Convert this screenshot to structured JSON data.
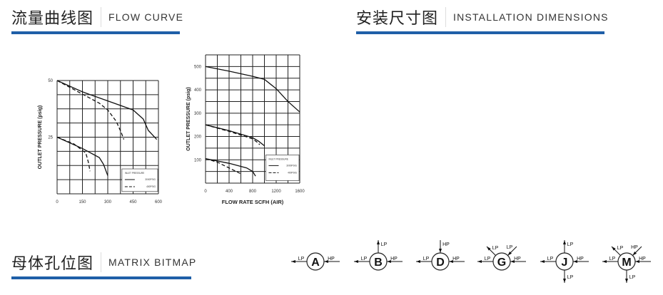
{
  "sections": {
    "flow": {
      "zh": "流量曲线图",
      "en": "FLOW CURVE"
    },
    "install": {
      "zh": "安装尺寸图",
      "en": "INSTALLATION DIMENSIONS"
    },
    "matrix": {
      "zh": "母体孔位图",
      "en": "MATRIX BITMAP"
    }
  },
  "accent": "#1f5fa8",
  "chart_data": [
    {
      "type": "line",
      "xlabel": "FLOW RATE SCFH (AIR)",
      "ylabel": "OUTLET PRESSURE (psig)",
      "xlim": [
        0,
        600
      ],
      "ylim": [
        0,
        50
      ],
      "xticks": [
        "0",
        "150",
        "300",
        "450",
        "600"
      ],
      "yticks": [
        "25",
        "50"
      ],
      "grid": true,
      "legend": {
        "title": "INLET PRESSURE",
        "placement": "bottom-right",
        "entries": [
          "3000PSIG",
          "400PSIG"
        ]
      },
      "series": [
        {
          "style": "solid",
          "points": [
            [
              0,
              50
            ],
            [
              150,
              45
            ],
            [
              300,
              41
            ],
            [
              450,
              37
            ],
            [
              510,
              33
            ],
            [
              540,
              28
            ],
            [
              590,
              24
            ]
          ]
        },
        {
          "style": "dashed",
          "points": [
            [
              0,
              50
            ],
            [
              150,
              44
            ],
            [
              250,
              40
            ],
            [
              300,
              37
            ],
            [
              350,
              32
            ],
            [
              380,
              27
            ],
            [
              395,
              24
            ]
          ]
        },
        {
          "style": "solid",
          "points": [
            [
              0,
              25
            ],
            [
              150,
              20
            ],
            [
              250,
              16
            ],
            [
              275,
              13
            ],
            [
              300,
              8
            ]
          ]
        },
        {
          "style": "dashed",
          "points": [
            [
              0,
              25
            ],
            [
              100,
              22
            ],
            [
              170,
              18
            ],
            [
              185,
              14
            ],
            [
              195,
              10
            ]
          ]
        }
      ]
    },
    {
      "type": "line",
      "xlabel": "FLOW RATE SCFH (AIR)",
      "ylabel": "OUTLET PRESSURE (psig)",
      "xlim": [
        0,
        1600
      ],
      "ylim": [
        0,
        550
      ],
      "xticks": [
        "0",
        "400",
        "800",
        "1200",
        "1600"
      ],
      "yticks": [
        "100",
        "200",
        "300",
        "400",
        "500"
      ],
      "grid": true,
      "legend": {
        "title": "INLET PRESSURE",
        "placement": "bottom-right",
        "entries": [
          "3000PSIG",
          "400PSIG"
        ]
      },
      "series": [
        {
          "style": "solid",
          "points": [
            [
              0,
              500
            ],
            [
              400,
              480
            ],
            [
              800,
              458
            ],
            [
              1000,
              445
            ],
            [
              1200,
              405
            ],
            [
              1400,
              350
            ],
            [
              1600,
              305
            ]
          ]
        },
        {
          "style": "solid",
          "points": [
            [
              0,
              250
            ],
            [
              400,
              225
            ],
            [
              800,
              195
            ],
            [
              900,
              180
            ],
            [
              1000,
              160
            ]
          ]
        },
        {
          "style": "dashed",
          "points": [
            [
              0,
              250
            ],
            [
              400,
              222
            ],
            [
              800,
              190
            ],
            [
              880,
              175
            ],
            [
              920,
              165
            ]
          ]
        },
        {
          "style": "solid",
          "points": [
            [
              0,
              105
            ],
            [
              400,
              85
            ],
            [
              700,
              65
            ],
            [
              800,
              50
            ],
            [
              850,
              30
            ]
          ]
        },
        {
          "style": "dashed",
          "points": [
            [
              0,
              105
            ],
            [
              200,
              90
            ],
            [
              400,
              65
            ],
            [
              600,
              40
            ]
          ]
        }
      ]
    }
  ],
  "matrix": [
    {
      "letter": "A",
      "ports": [
        {
          "label": "LP",
          "dir": "left",
          "flow": "out"
        },
        {
          "label": "HP",
          "dir": "right",
          "flow": "in"
        }
      ]
    },
    {
      "letter": "B",
      "ports": [
        {
          "label": "LP",
          "dir": "left",
          "flow": "out"
        },
        {
          "label": "LP",
          "dir": "up",
          "flow": "out"
        },
        {
          "label": "HP",
          "dir": "right",
          "flow": "in"
        }
      ]
    },
    {
      "letter": "D",
      "ports": [
        {
          "label": "LP",
          "dir": "left",
          "flow": "out"
        },
        {
          "label": "HP",
          "dir": "up",
          "flow": "in"
        },
        {
          "label": "HP",
          "dir": "right",
          "flow": "in"
        }
      ]
    },
    {
      "letter": "G",
      "ports": [
        {
          "label": "LP",
          "dir": "left",
          "flow": "out"
        },
        {
          "label": "LP",
          "dir": "up-left",
          "flow": "out"
        },
        {
          "label": "LP",
          "dir": "up-right",
          "flow": "in"
        },
        {
          "label": "HP",
          "dir": "right",
          "flow": "in"
        }
      ]
    },
    {
      "letter": "J",
      "ports": [
        {
          "label": "LP",
          "dir": "left",
          "flow": "out"
        },
        {
          "label": "LP",
          "dir": "up",
          "flow": "out"
        },
        {
          "label": "LP",
          "dir": "down",
          "flow": "out"
        },
        {
          "label": "HP",
          "dir": "right",
          "flow": "in"
        }
      ]
    },
    {
      "letter": "M",
      "ports": [
        {
          "label": "LP",
          "dir": "left",
          "flow": "out"
        },
        {
          "label": "LP",
          "dir": "up-left",
          "flow": "out"
        },
        {
          "label": "HP",
          "dir": "up-right",
          "flow": "in"
        },
        {
          "label": "LP",
          "dir": "down",
          "flow": "out"
        },
        {
          "label": "HP",
          "dir": "right",
          "flow": "in"
        }
      ]
    }
  ]
}
